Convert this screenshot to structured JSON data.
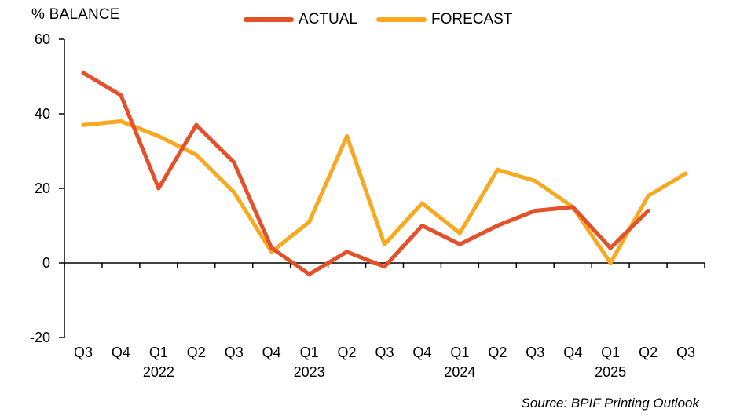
{
  "chart_data": {
    "type": "line",
    "ylabel": "% BALANCE",
    "ylim": [
      -20,
      60
    ],
    "yticks": [
      60,
      40,
      20,
      0,
      -20
    ],
    "categories": [
      "Q3",
      "Q4",
      "Q1",
      "Q2",
      "Q3",
      "Q4",
      "Q1",
      "Q2",
      "Q3",
      "Q4",
      "Q1",
      "Q2",
      "Q3",
      "Q4",
      "Q1",
      "Q2",
      "Q3"
    ],
    "years": [
      {
        "label": "2022",
        "index": 2
      },
      {
        "label": "2023",
        "index": 6
      },
      {
        "label": "2024",
        "index": 10
      },
      {
        "label": "2025",
        "index": 14
      }
    ],
    "series": [
      {
        "name": "ACTUAL",
        "color": "#e4502a",
        "values": [
          51,
          45,
          20,
          37,
          27,
          4,
          -3,
          3,
          -1,
          10,
          5,
          10,
          14,
          15,
          4,
          14,
          null
        ]
      },
      {
        "name": "FORECAST",
        "color": "#f8a91f",
        "values": [
          37,
          38,
          34,
          29,
          19,
          3,
          11,
          34,
          5,
          16,
          8,
          25,
          22,
          15,
          0,
          18,
          24
        ]
      }
    ],
    "grid": false,
    "legend_position": "top"
  },
  "source": "Source: BPIF Printing Outlook"
}
